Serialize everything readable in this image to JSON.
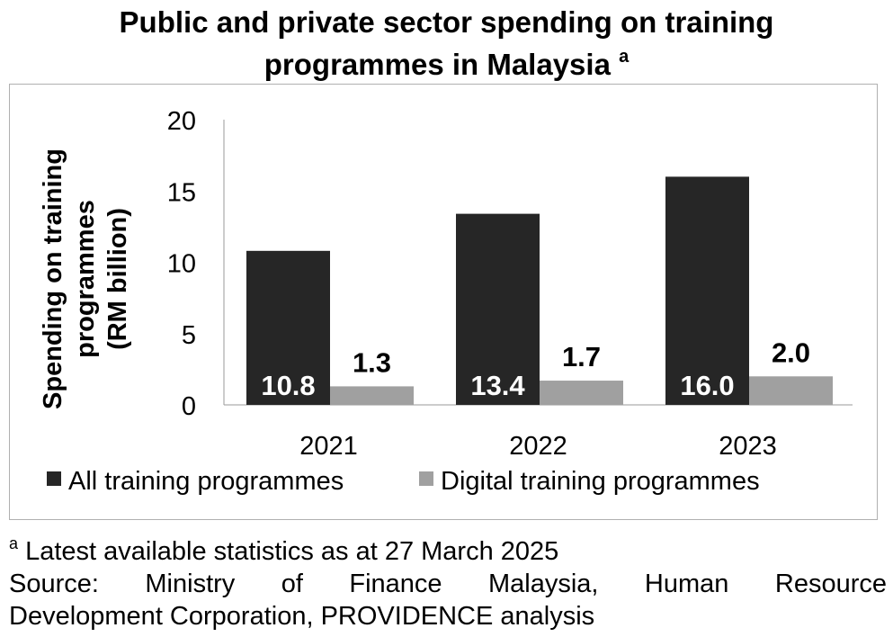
{
  "chart_data": {
    "type": "bar",
    "title_line1": "Public and private sector spending on training",
    "title_line2": "programmes in Malaysia",
    "title_superscript": "a",
    "ylabel_line1": "Spending on training",
    "ylabel_line2": "programmes",
    "ylabel_line3": "(RM billion)",
    "xlabel": "",
    "ylim": [
      0,
      20
    ],
    "yticks": [
      "0",
      "5",
      "10",
      "15",
      "20"
    ],
    "categories": [
      "2021",
      "2022",
      "2023"
    ],
    "series": [
      {
        "name": "All training programmes",
        "color": "#262626",
        "values": [
          10.8,
          13.4,
          16.0
        ],
        "labels": [
          "10.8",
          "13.4",
          "16.0"
        ]
      },
      {
        "name": "Digital training programmes",
        "color": "#a0a0a0",
        "values": [
          1.3,
          1.7,
          2.0
        ],
        "labels": [
          "1.3",
          "1.7",
          "2.0"
        ]
      }
    ],
    "legend_position": "bottom",
    "grid": false
  },
  "footnote": {
    "marker": "a",
    "text": "Latest available statistics as at 27 March 2025",
    "source_line1": "Source: Ministry of Finance Malaysia, Human Resource",
    "source_line2": "Development Corporation, PROVIDENCE analysis"
  }
}
